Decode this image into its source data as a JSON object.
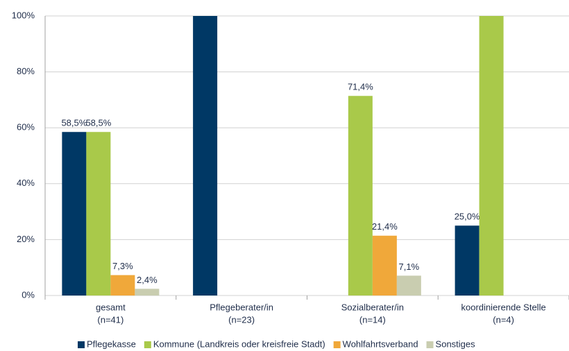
{
  "chart_data": {
    "type": "bar",
    "categories": [
      [
        "gesamt",
        "(n=41)"
      ],
      [
        "Pflegeberater/in",
        "(n=23)"
      ],
      [
        "Sozialberater/in",
        "(n=14)"
      ],
      [
        "koordinierende Stelle",
        "(n=4)"
      ]
    ],
    "series": [
      {
        "name": "Pflegekasse",
        "color": "#003865",
        "values": [
          58.5,
          100,
          0,
          25
        ],
        "value_labels": [
          "58,5%",
          null,
          null,
          "25,0%"
        ]
      },
      {
        "name": "Kommune (Landkreis oder kreisfreie Stadt)",
        "color": "#a9c94a",
        "values": [
          58.5,
          0,
          71.4,
          100
        ],
        "value_labels": [
          "58,5%",
          null,
          "71,4%",
          null
        ]
      },
      {
        "name": "Wohlfahrtsverband",
        "color": "#f0a83a",
        "values": [
          7.3,
          0,
          21.4,
          0
        ],
        "value_labels": [
          "7,3%",
          null,
          "21,4%",
          null
        ]
      },
      {
        "name": "Sonstiges",
        "color": "#c9cdb0",
        "values": [
          2.4,
          0,
          7.1,
          0
        ],
        "value_labels": [
          "2,4%",
          null,
          "7,1%",
          null
        ]
      }
    ],
    "ylim": [
      0,
      100
    ],
    "yticks": [
      {
        "value": 0,
        "label": "0%"
      },
      {
        "value": 20,
        "label": "20%"
      },
      {
        "value": 40,
        "label": "40%"
      },
      {
        "value": 60,
        "label": "60%"
      },
      {
        "value": 80,
        "label": "80%"
      },
      {
        "value": 100,
        "label": "100%"
      }
    ],
    "grid": true,
    "legend": "bottom"
  }
}
